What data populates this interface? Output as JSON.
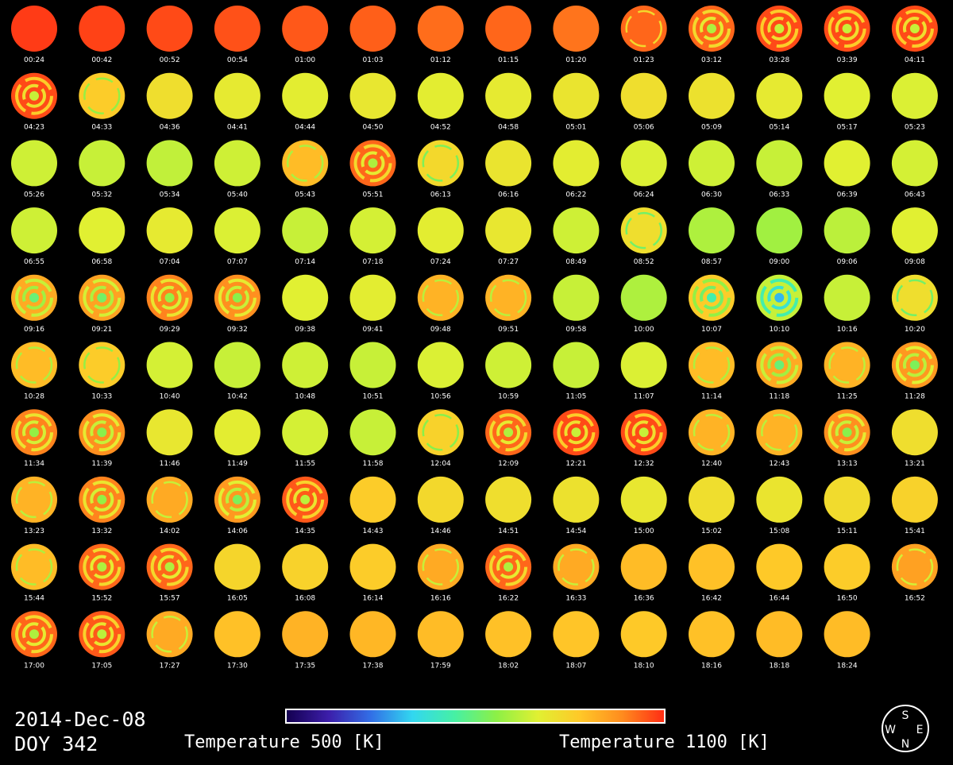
{
  "date": "2014-Dec-08",
  "doy": "DOY 342",
  "colorbar": {
    "min_label": "Temperature 500 [K]",
    "max_label": "Temperature 1100 [K]",
    "colors": [
      "#140050",
      "#3c1eaa",
      "#326ee6",
      "#32d7f0",
      "#46f0a5",
      "#8cf046",
      "#e1f032",
      "#ffc828",
      "#ff8c1e",
      "#ff2d14"
    ]
  },
  "compass": {
    "top": "S",
    "left": "W",
    "right": "E",
    "bottom": "N"
  },
  "chart_data": {
    "type": "heatmap",
    "title": "",
    "value_range": [
      500,
      1100
    ],
    "unit": "K",
    "panels": [
      {
        "time": "00:24",
        "temp": 1090,
        "ring": 0
      },
      {
        "time": "00:42",
        "temp": 1085,
        "ring": 0
      },
      {
        "time": "00:52",
        "temp": 1080,
        "ring": 0
      },
      {
        "time": "00:54",
        "temp": 1075,
        "ring": 0
      },
      {
        "time": "01:00",
        "temp": 1070,
        "ring": 0
      },
      {
        "time": "01:03",
        "temp": 1065,
        "ring": 0
      },
      {
        "time": "01:12",
        "temp": 1055,
        "ring": 0
      },
      {
        "time": "01:15",
        "temp": 1060,
        "ring": 0
      },
      {
        "time": "01:20",
        "temp": 1050,
        "ring": 0
      },
      {
        "time": "01:23",
        "temp": 1060,
        "ring": 1
      },
      {
        "time": "03:12",
        "temp": 1060,
        "ring": 2
      },
      {
        "time": "03:28",
        "temp": 1080,
        "ring": 2
      },
      {
        "time": "03:39",
        "temp": 1080,
        "ring": 2
      },
      {
        "time": "04:11",
        "temp": 1080,
        "ring": 2
      },
      {
        "time": "04:23",
        "temp": 1080,
        "ring": 2
      },
      {
        "time": "04:33",
        "temp": 960,
        "ring": 1
      },
      {
        "time": "04:36",
        "temp": 930,
        "ring": 0
      },
      {
        "time": "04:41",
        "temp": 910,
        "ring": 0
      },
      {
        "time": "04:44",
        "temp": 905,
        "ring": 0
      },
      {
        "time": "04:50",
        "temp": 915,
        "ring": 0
      },
      {
        "time": "04:52",
        "temp": 905,
        "ring": 0
      },
      {
        "time": "04:58",
        "temp": 910,
        "ring": 0
      },
      {
        "time": "05:01",
        "temp": 920,
        "ring": 0
      },
      {
        "time": "05:06",
        "temp": 930,
        "ring": 0
      },
      {
        "time": "05:09",
        "temp": 925,
        "ring": 0
      },
      {
        "time": "05:14",
        "temp": 910,
        "ring": 0
      },
      {
        "time": "05:17",
        "temp": 900,
        "ring": 0
      },
      {
        "time": "05:23",
        "temp": 895,
        "ring": 0
      },
      {
        "time": "05:26",
        "temp": 885,
        "ring": 0
      },
      {
        "time": "05:32",
        "temp": 880,
        "ring": 0
      },
      {
        "time": "05:34",
        "temp": 875,
        "ring": 0
      },
      {
        "time": "05:40",
        "temp": 885,
        "ring": 0
      },
      {
        "time": "05:43",
        "temp": 980,
        "ring": 1
      },
      {
        "time": "05:51",
        "temp": 1060,
        "ring": 2
      },
      {
        "time": "06:13",
        "temp": 940,
        "ring": 1
      },
      {
        "time": "06:16",
        "temp": 920,
        "ring": 0
      },
      {
        "time": "06:22",
        "temp": 905,
        "ring": 0
      },
      {
        "time": "06:24",
        "temp": 895,
        "ring": 0
      },
      {
        "time": "06:30",
        "temp": 885,
        "ring": 0
      },
      {
        "time": "06:33",
        "temp": 880,
        "ring": 0
      },
      {
        "time": "06:39",
        "temp": 900,
        "ring": 0
      },
      {
        "time": "06:43",
        "temp": 890,
        "ring": 0
      },
      {
        "time": "06:55",
        "temp": 885,
        "ring": 0
      },
      {
        "time": "06:58",
        "temp": 900,
        "ring": 0
      },
      {
        "time": "07:04",
        "temp": 910,
        "ring": 0
      },
      {
        "time": "07:07",
        "temp": 895,
        "ring": 0
      },
      {
        "time": "07:14",
        "temp": 880,
        "ring": 0
      },
      {
        "time": "07:18",
        "temp": 890,
        "ring": 0
      },
      {
        "time": "07:24",
        "temp": 905,
        "ring": 0
      },
      {
        "time": "07:27",
        "temp": 915,
        "ring": 0
      },
      {
        "time": "08:49",
        "temp": 885,
        "ring": 0
      },
      {
        "time": "08:52",
        "temp": 930,
        "ring": 1
      },
      {
        "time": "08:57",
        "temp": 860,
        "ring": 0
      },
      {
        "time": "09:00",
        "temp": 850,
        "ring": 0
      },
      {
        "time": "09:06",
        "temp": 870,
        "ring": 0
      },
      {
        "time": "09:08",
        "temp": 900,
        "ring": 0
      },
      {
        "time": "09:16",
        "temp": 1000,
        "ring": 2
      },
      {
        "time": "09:21",
        "temp": 1010,
        "ring": 2
      },
      {
        "time": "09:29",
        "temp": 1040,
        "ring": 2
      },
      {
        "time": "09:32",
        "temp": 1030,
        "ring": 2
      },
      {
        "time": "09:38",
        "temp": 900,
        "ring": 0
      },
      {
        "time": "09:41",
        "temp": 905,
        "ring": 0
      },
      {
        "time": "09:48",
        "temp": 990,
        "ring": 1
      },
      {
        "time": "09:51",
        "temp": 990,
        "ring": 1
      },
      {
        "time": "09:58",
        "temp": 880,
        "ring": 0
      },
      {
        "time": "10:00",
        "temp": 860,
        "ring": 0
      },
      {
        "time": "10:07",
        "temp": 960,
        "ring": 2
      },
      {
        "time": "10:10",
        "temp": 880,
        "ring": 2
      },
      {
        "time": "10:16",
        "temp": 880,
        "ring": 0
      },
      {
        "time": "10:20",
        "temp": 930,
        "ring": 1
      },
      {
        "time": "10:28",
        "temp": 980,
        "ring": 1
      },
      {
        "time": "10:33",
        "temp": 960,
        "ring": 1
      },
      {
        "time": "10:40",
        "temp": 890,
        "ring": 0
      },
      {
        "time": "10:42",
        "temp": 880,
        "ring": 0
      },
      {
        "time": "10:48",
        "temp": 885,
        "ring": 0
      },
      {
        "time": "10:51",
        "temp": 880,
        "ring": 0
      },
      {
        "time": "10:56",
        "temp": 895,
        "ring": 0
      },
      {
        "time": "10:59",
        "temp": 885,
        "ring": 0
      },
      {
        "time": "11:05",
        "temp": 880,
        "ring": 0
      },
      {
        "time": "11:07",
        "temp": 895,
        "ring": 0
      },
      {
        "time": "11:14",
        "temp": 980,
        "ring": 1
      },
      {
        "time": "11:18",
        "temp": 1000,
        "ring": 2
      },
      {
        "time": "11:25",
        "temp": 990,
        "ring": 1
      },
      {
        "time": "11:28",
        "temp": 1020,
        "ring": 2
      },
      {
        "time": "11:34",
        "temp": 1040,
        "ring": 2
      },
      {
        "time": "11:39",
        "temp": 1030,
        "ring": 2
      },
      {
        "time": "11:46",
        "temp": 915,
        "ring": 0
      },
      {
        "time": "11:49",
        "temp": 905,
        "ring": 0
      },
      {
        "time": "11:55",
        "temp": 890,
        "ring": 0
      },
      {
        "time": "11:58",
        "temp": 880,
        "ring": 0
      },
      {
        "time": "12:04",
        "temp": 950,
        "ring": 1
      },
      {
        "time": "12:09",
        "temp": 1060,
        "ring": 2
      },
      {
        "time": "12:21",
        "temp": 1080,
        "ring": 2
      },
      {
        "time": "12:32",
        "temp": 1080,
        "ring": 2
      },
      {
        "time": "12:40",
        "temp": 990,
        "ring": 1
      },
      {
        "time": "12:43",
        "temp": 990,
        "ring": 1
      },
      {
        "time": "13:13",
        "temp": 1030,
        "ring": 2
      },
      {
        "time": "13:21",
        "temp": 930,
        "ring": 0
      },
      {
        "time": "13:23",
        "temp": 990,
        "ring": 1
      },
      {
        "time": "13:32",
        "temp": 1040,
        "ring": 2
      },
      {
        "time": "14:02",
        "temp": 1000,
        "ring": 1
      },
      {
        "time": "14:06",
        "temp": 1020,
        "ring": 2
      },
      {
        "time": "14:35",
        "temp": 1070,
        "ring": 2
      },
      {
        "time": "14:43",
        "temp": 960,
        "ring": 0
      },
      {
        "time": "14:46",
        "temp": 940,
        "ring": 0
      },
      {
        "time": "14:51",
        "temp": 930,
        "ring": 0
      },
      {
        "time": "14:54",
        "temp": 925,
        "ring": 0
      },
      {
        "time": "15:00",
        "temp": 915,
        "ring": 0
      },
      {
        "time": "15:02",
        "temp": 930,
        "ring": 0
      },
      {
        "time": "15:08",
        "temp": 920,
        "ring": 0
      },
      {
        "time": "15:11",
        "temp": 935,
        "ring": 0
      },
      {
        "time": "15:41",
        "temp": 950,
        "ring": 0
      },
      {
        "time": "15:44",
        "temp": 980,
        "ring": 1
      },
      {
        "time": "15:52",
        "temp": 1060,
        "ring": 2
      },
      {
        "time": "15:57",
        "temp": 1060,
        "ring": 2
      },
      {
        "time": "16:05",
        "temp": 945,
        "ring": 0
      },
      {
        "time": "16:08",
        "temp": 950,
        "ring": 0
      },
      {
        "time": "16:14",
        "temp": 960,
        "ring": 0
      },
      {
        "time": "16:16",
        "temp": 1000,
        "ring": 1
      },
      {
        "time": "16:22",
        "temp": 1060,
        "ring": 2
      },
      {
        "time": "16:33",
        "temp": 1000,
        "ring": 1
      },
      {
        "time": "16:36",
        "temp": 980,
        "ring": 0
      },
      {
        "time": "16:42",
        "temp": 975,
        "ring": 0
      },
      {
        "time": "16:44",
        "temp": 965,
        "ring": 0
      },
      {
        "time": "16:50",
        "temp": 960,
        "ring": 0
      },
      {
        "time": "16:52",
        "temp": 1010,
        "ring": 1
      },
      {
        "time": "17:00",
        "temp": 1060,
        "ring": 2
      },
      {
        "time": "17:05",
        "temp": 1070,
        "ring": 2
      },
      {
        "time": "17:27",
        "temp": 1000,
        "ring": 1
      },
      {
        "time": "17:30",
        "temp": 975,
        "ring": 0
      },
      {
        "time": "17:35",
        "temp": 990,
        "ring": 0
      },
      {
        "time": "17:38",
        "temp": 985,
        "ring": 0
      },
      {
        "time": "17:59",
        "temp": 980,
        "ring": 0
      },
      {
        "time": "18:02",
        "temp": 975,
        "ring": 0
      },
      {
        "time": "18:07",
        "temp": 970,
        "ring": 0
      },
      {
        "time": "18:10",
        "temp": 965,
        "ring": 0
      },
      {
        "time": "18:16",
        "temp": 975,
        "ring": 0
      },
      {
        "time": "18:18",
        "temp": 980,
        "ring": 0
      },
      {
        "time": "18:24",
        "temp": 980,
        "ring": 0
      }
    ]
  }
}
